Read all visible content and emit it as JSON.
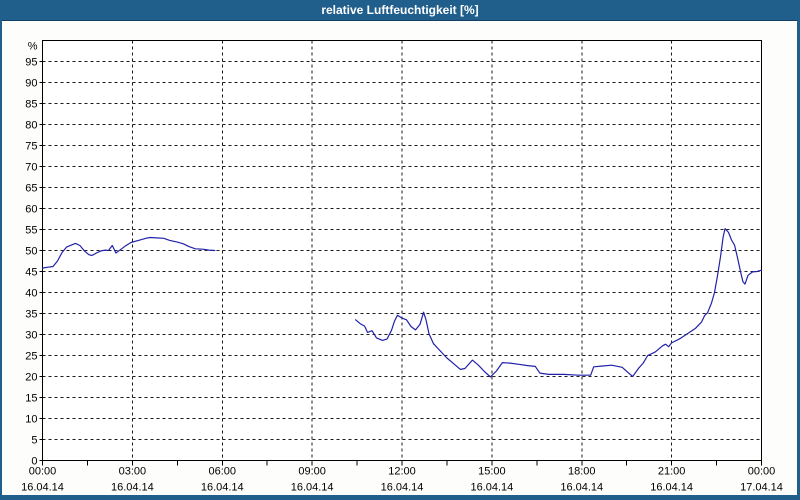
{
  "window": {
    "title": "relative Luftfeuchtigkeit [%]"
  },
  "colors": {
    "titlebar_bg": "#205e8c",
    "titlebar_edge": "#133f63",
    "frame": "#205e8c",
    "background": "#fdfefb",
    "plot_background": "#ffffff",
    "plot_border": "#000000",
    "grid": "#1a1a1a",
    "text": "#000000",
    "series_line": "#2121aa"
  },
  "chart_data": {
    "type": "line",
    "title": "relative Luftfeuchtigkeit [%]",
    "ylabel": "%",
    "xlabel": "",
    "ylim": [
      0,
      100
    ],
    "xlim_hours": [
      0,
      24
    ],
    "y_tick_step": 5,
    "y_tick_labels": [
      "0",
      "5",
      "10",
      "15",
      "20",
      "25",
      "30",
      "35",
      "40",
      "45",
      "50",
      "55",
      "60",
      "65",
      "70",
      "75",
      "80",
      "85",
      "90",
      "95"
    ],
    "grid": "dashed",
    "legend": "none",
    "x_minor_tick_hours": 1.5,
    "x_ticks": [
      {
        "hour": 0,
        "time": "00:00",
        "date": "16.04.14"
      },
      {
        "hour": 3,
        "time": "03:00",
        "date": "16.04.14"
      },
      {
        "hour": 6,
        "time": "06:00",
        "date": "16.04.14"
      },
      {
        "hour": 9,
        "time": "09:00",
        "date": "16.04.14"
      },
      {
        "hour": 12,
        "time": "12:00",
        "date": "16.04.14"
      },
      {
        "hour": 15,
        "time": "15:00",
        "date": "16.04.14"
      },
      {
        "hour": 18,
        "time": "18:00",
        "date": "16.04.14"
      },
      {
        "hour": 21,
        "time": "21:00",
        "date": "16.04.14"
      },
      {
        "hour": 24,
        "time": "00:00",
        "date": "17.04.14"
      }
    ],
    "series": [
      {
        "name": "relative Luftfeuchtigkeit",
        "unit": "%",
        "color": "#2121aa",
        "segments": [
          [
            [
              0.0,
              45.8
            ],
            [
              0.15,
              46.0
            ],
            [
              0.35,
              46.2
            ],
            [
              0.5,
              47.5
            ],
            [
              0.65,
              49.5
            ],
            [
              0.8,
              50.8
            ],
            [
              1.0,
              51.4
            ],
            [
              1.1,
              51.7
            ],
            [
              1.25,
              51.2
            ],
            [
              1.4,
              49.9
            ],
            [
              1.55,
              49.0
            ],
            [
              1.65,
              48.8
            ],
            [
              1.8,
              49.4
            ],
            [
              1.95,
              49.9
            ],
            [
              2.1,
              50.1
            ],
            [
              2.2,
              50.0
            ],
            [
              2.33,
              51.2
            ],
            [
              2.45,
              49.4
            ],
            [
              2.6,
              50.2
            ],
            [
              2.75,
              51.0
            ],
            [
              2.95,
              51.9
            ],
            [
              3.2,
              52.4
            ],
            [
              3.45,
              52.9
            ],
            [
              3.6,
              53.1
            ],
            [
              3.8,
              53.0
            ],
            [
              4.05,
              52.9
            ],
            [
              4.25,
              52.4
            ],
            [
              4.5,
              52.0
            ],
            [
              4.7,
              51.6
            ],
            [
              4.9,
              50.9
            ],
            [
              5.1,
              50.4
            ],
            [
              5.35,
              50.3
            ],
            [
              5.55,
              50.1
            ],
            [
              5.75,
              50.0
            ]
          ],
          [
            [
              10.45,
              33.5
            ],
            [
              10.6,
              32.6
            ],
            [
              10.75,
              32.0
            ],
            [
              10.85,
              30.5
            ],
            [
              11.0,
              30.9
            ],
            [
              11.15,
              29.2
            ],
            [
              11.35,
              28.6
            ],
            [
              11.5,
              28.9
            ],
            [
              11.65,
              31.0
            ],
            [
              11.75,
              33.2
            ],
            [
              11.85,
              34.6
            ],
            [
              12.0,
              33.9
            ],
            [
              12.15,
              33.5
            ],
            [
              12.3,
              31.9
            ],
            [
              12.45,
              31.1
            ],
            [
              12.6,
              32.4
            ],
            [
              12.72,
              35.3
            ],
            [
              12.8,
              33.5
            ],
            [
              12.9,
              30.2
            ],
            [
              13.05,
              27.8
            ],
            [
              13.25,
              26.3
            ],
            [
              13.5,
              24.4
            ],
            [
              13.75,
              22.9
            ],
            [
              13.95,
              21.7
            ],
            [
              14.1,
              21.9
            ],
            [
              14.35,
              23.9
            ],
            [
              14.55,
              22.7
            ],
            [
              14.75,
              21.2
            ],
            [
              14.95,
              19.9
            ],
            [
              15.15,
              21.3
            ],
            [
              15.35,
              23.3
            ],
            [
              15.6,
              23.2
            ],
            [
              15.9,
              22.9
            ],
            [
              16.2,
              22.6
            ],
            [
              16.45,
              22.4
            ],
            [
              16.6,
              20.8
            ],
            [
              16.9,
              20.5
            ],
            [
              17.4,
              20.5
            ],
            [
              17.9,
              20.3
            ],
            [
              18.3,
              20.3
            ],
            [
              18.4,
              22.3
            ],
            [
              18.7,
              22.5
            ],
            [
              19.0,
              22.7
            ],
            [
              19.35,
              22.2
            ],
            [
              19.55,
              20.9
            ],
            [
              19.7,
              20.0
            ],
            [
              19.9,
              22.0
            ],
            [
              20.05,
              23.2
            ],
            [
              20.2,
              25.0
            ],
            [
              20.45,
              25.8
            ],
            [
              20.7,
              27.3
            ],
            [
              20.8,
              27.7
            ],
            [
              20.9,
              27.1
            ],
            [
              21.0,
              28.0
            ],
            [
              21.3,
              29.1
            ],
            [
              21.55,
              30.3
            ],
            [
              21.8,
              31.5
            ],
            [
              22.0,
              33.0
            ],
            [
              22.1,
              34.5
            ],
            [
              22.2,
              35.2
            ],
            [
              22.33,
              37.5
            ],
            [
              22.43,
              40.0
            ],
            [
              22.53,
              44.0
            ],
            [
              22.63,
              48.5
            ],
            [
              22.72,
              53.3
            ],
            [
              22.78,
              55.2
            ],
            [
              22.9,
              54.3
            ],
            [
              23.0,
              52.5
            ],
            [
              23.1,
              51.3
            ],
            [
              23.2,
              48.3
            ],
            [
              23.3,
              45.0
            ],
            [
              23.38,
              42.6
            ],
            [
              23.45,
              42.0
            ],
            [
              23.55,
              44.1
            ],
            [
              23.7,
              44.9
            ],
            [
              23.85,
              45.0
            ],
            [
              24.0,
              45.3
            ]
          ]
        ]
      }
    ]
  }
}
